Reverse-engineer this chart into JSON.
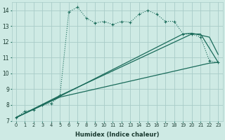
{
  "xlabel": "Humidex (Indice chaleur)",
  "bg_color": "#ceeae4",
  "grid_color": "#a8ccc8",
  "line_color": "#1a6b5a",
  "xlim": [
    -0.5,
    23.5
  ],
  "ylim": [
    7,
    14.5
  ],
  "xticks": [
    0,
    1,
    2,
    3,
    4,
    5,
    6,
    7,
    8,
    9,
    10,
    11,
    12,
    13,
    14,
    15,
    16,
    17,
    18,
    19,
    20,
    21,
    22,
    23
  ],
  "yticks": [
    7,
    8,
    9,
    10,
    11,
    12,
    13,
    14
  ],
  "dotted_x": [
    0,
    1,
    2,
    3,
    4,
    5,
    6,
    7,
    8,
    9,
    10,
    11,
    12,
    13,
    14,
    15,
    16,
    17,
    18,
    19,
    20,
    21,
    22,
    23
  ],
  "dotted_y": [
    7.2,
    7.6,
    7.7,
    8.0,
    8.1,
    8.6,
    13.9,
    14.2,
    13.5,
    13.2,
    13.3,
    13.1,
    13.3,
    13.25,
    13.75,
    14.0,
    13.75,
    13.3,
    13.3,
    12.5,
    12.5,
    12.3,
    10.8,
    10.7
  ],
  "line1_x": [
    0,
    5,
    20,
    21,
    23
  ],
  "line1_y": [
    7.2,
    8.6,
    12.5,
    12.5,
    10.7
  ],
  "line2_x": [
    0,
    5,
    19,
    20,
    22,
    23
  ],
  "line2_y": [
    7.2,
    8.55,
    12.5,
    12.55,
    12.3,
    11.2
  ],
  "line3_x": [
    0,
    5,
    22,
    23
  ],
  "line3_y": [
    7.2,
    8.5,
    10.65,
    10.7
  ]
}
